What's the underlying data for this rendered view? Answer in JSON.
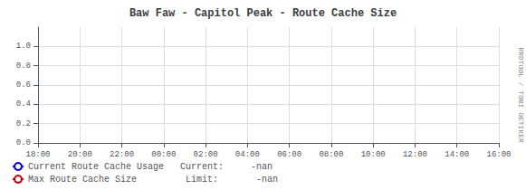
{
  "chart_data": {
    "type": "line",
    "title": "Baw Faw - Capitol Peak - Route Cache Size",
    "categories": [
      "18:00",
      "20:00",
      "22:00",
      "00:00",
      "02:00",
      "04:00",
      "06:00",
      "08:00",
      "10:00",
      "12:00",
      "14:00",
      "16:00"
    ],
    "series": [
      {
        "name": "Current Route Cache Usage   Current:     -nan",
        "color": "#0000cc",
        "values": [
          null,
          null,
          null,
          null,
          null,
          null,
          null,
          null,
          null,
          null,
          null,
          null
        ]
      },
      {
        "name": "Max Route Cache Size         Limit:       -nan",
        "color": "#cc0000",
        "values": [
          null,
          null,
          null,
          null,
          null,
          null,
          null,
          null,
          null,
          null,
          null,
          null
        ]
      }
    ],
    "ylim": [
      0.0,
      1.2
    ],
    "yticks": [
      {
        "value": 0.0,
        "label": "0.0"
      },
      0.2,
      0.4,
      0.6,
      0.8,
      {
        "value": 1.0,
        "label": "1.0"
      }
    ],
    "grid": true,
    "legend": "bottom left",
    "annotations": [
      "RRDTOOL / TOBI OETIKER"
    ]
  }
}
